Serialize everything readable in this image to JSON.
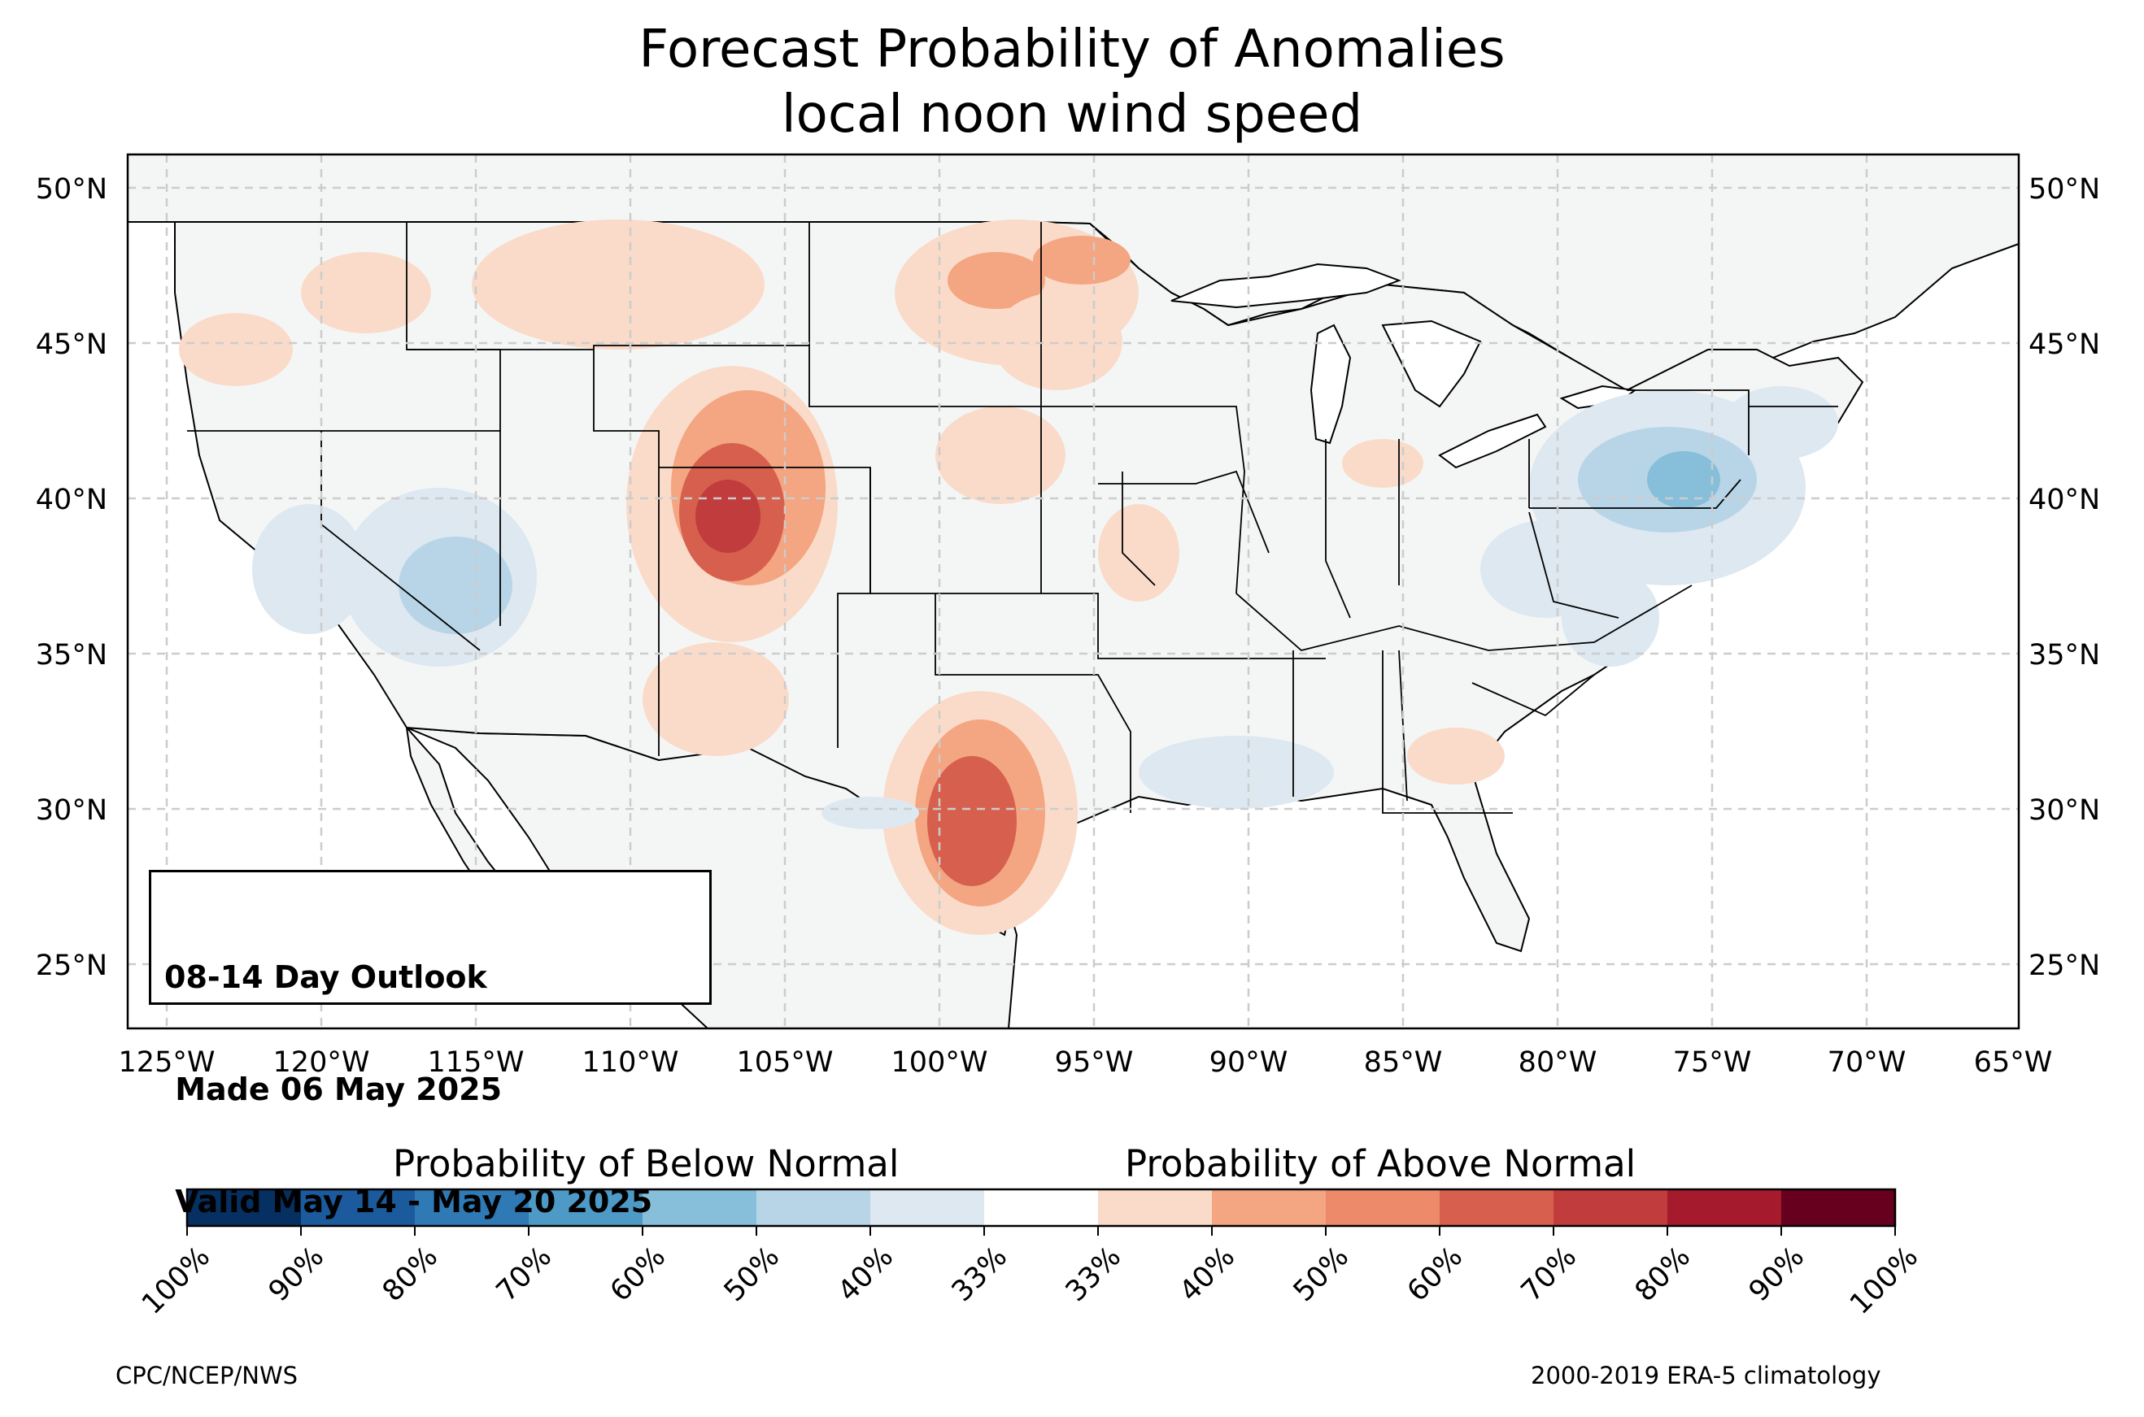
{
  "title": {
    "line1": "Forecast Probability of Anomalies",
    "line2": "local noon wind speed"
  },
  "axes": {
    "lat_labels": [
      "50°N",
      "45°N",
      "40°N",
      "35°N",
      "30°N",
      "25°N"
    ],
    "lon_labels": [
      "125°W",
      "120°W",
      "115°W",
      "110°W",
      "105°W",
      "100°W",
      "95°W",
      "90°W",
      "85°W",
      "80°W",
      "75°W",
      "70°W",
      "65°W"
    ]
  },
  "infobox": {
    "line1": "08-14 Day Outlook",
    "line2": " Made 06 May 2025",
    "line3": " Valid May 14 - May 20 2025"
  },
  "colorbar": {
    "below_title": "Probability of Below Normal",
    "above_title": "Probability of Above Normal",
    "tick_labels": [
      "100%",
      "90%",
      "80%",
      "70%",
      "60%",
      "50%",
      "40%",
      "33%",
      "33%",
      "40%",
      "50%",
      "60%",
      "70%",
      "80%",
      "90%",
      "100%"
    ],
    "colors": [
      "#053061",
      "#1b5a9c",
      "#2f79b5",
      "#4e9ac6",
      "#87beda",
      "#b8d5e8",
      "#dde8f1",
      "#ffffff",
      "#fadbc9",
      "#f4a582",
      "#ec8a6a",
      "#d6604d",
      "#c13c3c",
      "#a51b2d",
      "#67001f"
    ]
  },
  "map": {
    "land_color": "#f4f6f6",
    "ocean_color": "#ffffff",
    "grid_color": "#cccccc"
  },
  "footer": {
    "left": "CPC/NCEP/NWS",
    "right": "2000-2019 ERA-5 climatology"
  }
}
